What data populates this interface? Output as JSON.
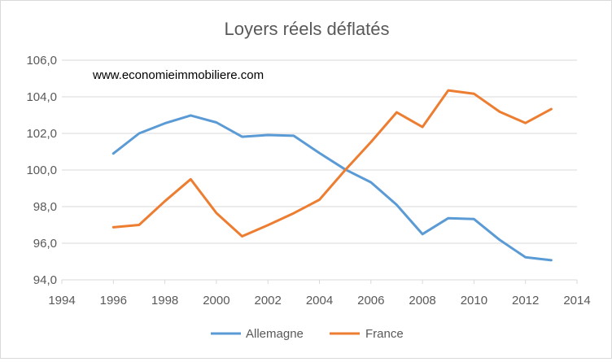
{
  "chart_data": {
    "type": "line",
    "title": "Loyers réels déflatés",
    "watermark": "www.economieimmobiliere.com",
    "xlabel": "",
    "ylabel": "",
    "xlim": [
      1994,
      2014
    ],
    "ylim": [
      94,
      106
    ],
    "x_ticks": [
      1994,
      1996,
      1998,
      2000,
      2002,
      2004,
      2006,
      2008,
      2010,
      2012,
      2014
    ],
    "x_tick_labels": [
      "1994",
      "1996",
      "1998",
      "2000",
      "2002",
      "2004",
      "2006",
      "2008",
      "2010",
      "2012",
      "2014"
    ],
    "y_ticks": [
      94,
      96,
      98,
      100,
      102,
      104,
      106
    ],
    "y_tick_labels": [
      "94,0",
      "96,0",
      "98,0",
      "100,0",
      "102,0",
      "104,0",
      "106,0"
    ],
    "grid": "horizontal",
    "legend_position": "bottom",
    "series": [
      {
        "name": "Allemagne",
        "color": "#5b9bd5",
        "x": [
          1996,
          1997,
          1998,
          1999,
          2000,
          2001,
          2002,
          2003,
          2004,
          2005,
          2006,
          2007,
          2008,
          2009,
          2010,
          2011,
          2012,
          2013
        ],
        "values": [
          100.9,
          102.0,
          102.55,
          102.98,
          102.6,
          101.82,
          101.91,
          101.87,
          100.93,
          100.03,
          99.33,
          98.1,
          96.5,
          97.37,
          97.32,
          96.18,
          95.23,
          95.07
        ]
      },
      {
        "name": "France",
        "color": "#ed7d31",
        "x": [
          1996,
          1997,
          1998,
          1999,
          2000,
          2001,
          2002,
          2003,
          2004,
          2005,
          2006,
          2007,
          2008,
          2009,
          2010,
          2011,
          2012,
          2013
        ],
        "values": [
          96.87,
          97.0,
          98.3,
          99.5,
          97.65,
          96.38,
          96.99,
          97.64,
          98.38,
          100.0,
          101.53,
          103.15,
          102.35,
          104.35,
          104.17,
          103.18,
          102.57,
          103.33
        ]
      }
    ]
  }
}
